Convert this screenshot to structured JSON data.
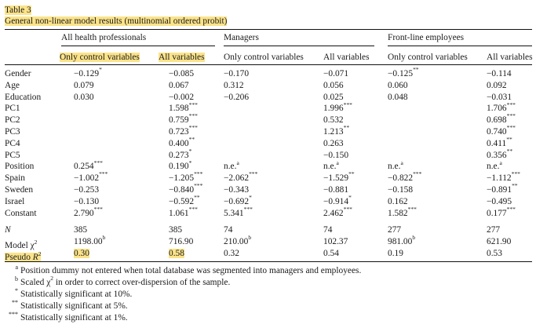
{
  "table_label": "Table 3",
  "table_title": "General non-linear model results (multinomial ordered probit)",
  "groups": [
    "All health professionals",
    "Managers",
    "Front-line employees"
  ],
  "columns": [
    "Only control variables",
    "All variables",
    "Only control variables",
    "All variables",
    "Only control variables",
    "All variables"
  ],
  "rows": [
    {
      "label": "Gender",
      "cells": [
        {
          "v": "−0.129",
          "s": "*"
        },
        {
          "v": "−0.085",
          "s": ""
        },
        {
          "v": "−0.170",
          "s": ""
        },
        {
          "v": "−0.071",
          "s": ""
        },
        {
          "v": "−0.125",
          "s": "**"
        },
        {
          "v": "−0.114",
          "s": ""
        }
      ]
    },
    {
      "label": "Age",
      "cells": [
        {
          "v": "0.079",
          "s": ""
        },
        {
          "v": "0.067",
          "s": ""
        },
        {
          "v": "0.312",
          "s": ""
        },
        {
          "v": "0.056",
          "s": ""
        },
        {
          "v": "0.060",
          "s": ""
        },
        {
          "v": "0.092",
          "s": ""
        }
      ]
    },
    {
      "label": "Education",
      "cells": [
        {
          "v": "0.030",
          "s": ""
        },
        {
          "v": "−0.002",
          "s": ""
        },
        {
          "v": "−0.206",
          "s": ""
        },
        {
          "v": "0.025",
          "s": ""
        },
        {
          "v": "0.048",
          "s": ""
        },
        {
          "v": "−0.031",
          "s": ""
        }
      ]
    },
    {
      "label": "PC1",
      "cells": [
        {
          "v": "",
          "s": ""
        },
        {
          "v": "1.598",
          "s": "***"
        },
        {
          "v": "",
          "s": ""
        },
        {
          "v": "1.996",
          "s": "***"
        },
        {
          "v": "",
          "s": ""
        },
        {
          "v": "1.706",
          "s": "***"
        }
      ]
    },
    {
      "label": "PC2",
      "cells": [
        {
          "v": "",
          "s": ""
        },
        {
          "v": "0.759",
          "s": "***"
        },
        {
          "v": "",
          "s": ""
        },
        {
          "v": "0.532",
          "s": ""
        },
        {
          "v": "",
          "s": ""
        },
        {
          "v": "0.698",
          "s": "***"
        }
      ]
    },
    {
      "label": "PC3",
      "cells": [
        {
          "v": "",
          "s": ""
        },
        {
          "v": "0.723",
          "s": "***"
        },
        {
          "v": "",
          "s": ""
        },
        {
          "v": "1.213",
          "s": "**"
        },
        {
          "v": "",
          "s": ""
        },
        {
          "v": "0.740",
          "s": "***"
        }
      ]
    },
    {
      "label": "PC4",
      "cells": [
        {
          "v": "",
          "s": ""
        },
        {
          "v": "0.400",
          "s": "**"
        },
        {
          "v": "",
          "s": ""
        },
        {
          "v": "0.263",
          "s": ""
        },
        {
          "v": "",
          "s": ""
        },
        {
          "v": "0.411",
          "s": "**"
        }
      ]
    },
    {
      "label": "PC5",
      "cells": [
        {
          "v": "",
          "s": ""
        },
        {
          "v": "0.273",
          "s": "*"
        },
        {
          "v": "",
          "s": ""
        },
        {
          "v": "−0.150",
          "s": ""
        },
        {
          "v": "",
          "s": ""
        },
        {
          "v": "0.356",
          "s": "**"
        }
      ]
    },
    {
      "label": "Position",
      "cells": [
        {
          "v": "0.254",
          "s": "***"
        },
        {
          "v": "0.190",
          "s": "*"
        },
        {
          "v": "n.e.",
          "s": "a"
        },
        {
          "v": "n.e.",
          "s": "a"
        },
        {
          "v": "n.e.",
          "s": "a"
        },
        {
          "v": "n.e.",
          "s": "a"
        }
      ]
    },
    {
      "label": "Spain",
      "cells": [
        {
          "v": "−1.002",
          "s": "***"
        },
        {
          "v": "−1.205",
          "s": "***"
        },
        {
          "v": "−2.062",
          "s": "***"
        },
        {
          "v": "−1.529",
          "s": "**"
        },
        {
          "v": "−0.822",
          "s": "***"
        },
        {
          "v": "−1.112",
          "s": "***"
        }
      ]
    },
    {
      "label": "Sweden",
      "cells": [
        {
          "v": "−0.253",
          "s": ""
        },
        {
          "v": "−0.840",
          "s": "***"
        },
        {
          "v": "−0.343",
          "s": ""
        },
        {
          "v": "−0.881",
          "s": ""
        },
        {
          "v": "−0.158",
          "s": ""
        },
        {
          "v": "−0.891",
          "s": "**"
        }
      ]
    },
    {
      "label": "Israel",
      "cells": [
        {
          "v": "−0.130",
          "s": ""
        },
        {
          "v": "−0.592",
          "s": "**"
        },
        {
          "v": "−0.692",
          "s": "*"
        },
        {
          "v": "−0.914",
          "s": "*"
        },
        {
          "v": "0.162",
          "s": ""
        },
        {
          "v": "−0.495",
          "s": ""
        }
      ]
    },
    {
      "label": "Constant",
      "cells": [
        {
          "v": "2.790",
          "s": "***"
        },
        {
          "v": "1.061",
          "s": "***"
        },
        {
          "v": "5.341",
          "s": "***"
        },
        {
          "v": "2.462",
          "s": "***"
        },
        {
          "v": "1.582",
          "s": "***"
        },
        {
          "v": "0.177",
          "s": "***"
        }
      ]
    }
  ],
  "stats_rows": [
    {
      "label": "N",
      "cells": [
        {
          "v": "385",
          "s": ""
        },
        {
          "v": "385",
          "s": ""
        },
        {
          "v": "74",
          "s": ""
        },
        {
          "v": "74",
          "s": ""
        },
        {
          "v": "277",
          "s": ""
        },
        {
          "v": "277",
          "s": ""
        }
      ]
    },
    {
      "label": "Model χ2",
      "cells": [
        {
          "v": "1198.00",
          "s": "b"
        },
        {
          "v": "716.90",
          "s": ""
        },
        {
          "v": "210.00",
          "s": "b"
        },
        {
          "v": "102.37",
          "s": ""
        },
        {
          "v": "981.00",
          "s": "b"
        },
        {
          "v": "621.90",
          "s": ""
        }
      ]
    },
    {
      "label": "Pseudo R2",
      "cells": [
        {
          "v": "0.30",
          "s": ""
        },
        {
          "v": "0.58",
          "s": ""
        },
        {
          "v": "0.32",
          "s": ""
        },
        {
          "v": "0.54",
          "s": ""
        },
        {
          "v": "0.19",
          "s": ""
        },
        {
          "v": "0.53",
          "s": ""
        }
      ]
    }
  ],
  "footnotes": [
    {
      "mark": "a",
      "text": "Position dummy not entered when total database was segmented into managers and employees."
    },
    {
      "mark": "b",
      "text": "Scaled χ2 in order to correct over-dispersion of the sample."
    },
    {
      "mark": "*",
      "text": "Statistically significant at 10%."
    },
    {
      "mark": "**",
      "text": "Statistically significant at 5%."
    },
    {
      "mark": "***",
      "text": "Statistically significant at 1%."
    }
  ],
  "highlight_color": "#fbe38a"
}
